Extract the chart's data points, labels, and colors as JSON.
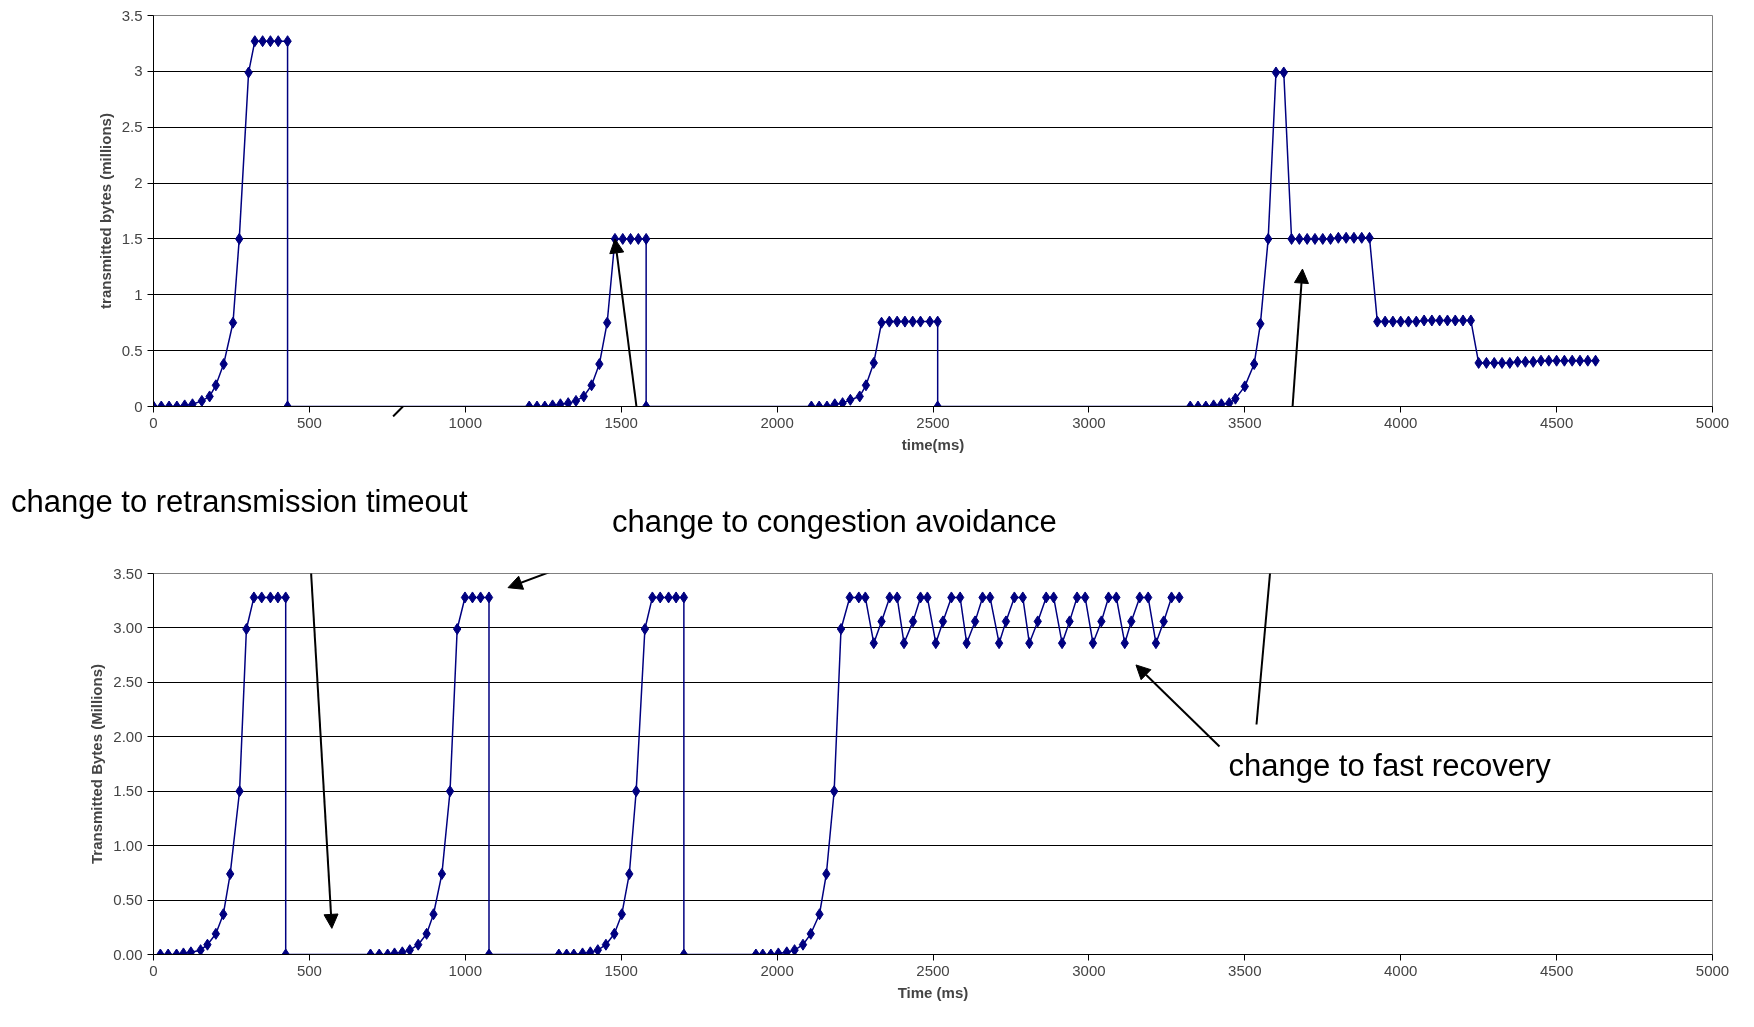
{
  "chart_data": [
    {
      "type": "line",
      "xlabel": "time(ms)",
      "ylabel": "transmitted bytes (millions)",
      "xlim": [
        0,
        5000
      ],
      "ylim": [
        0,
        3.5
      ],
      "xticks": [
        0,
        500,
        1000,
        1500,
        2000,
        2500,
        3000,
        3500,
        4000,
        4500,
        5000
      ],
      "yticks": [
        0,
        0.5,
        1,
        1.5,
        2,
        2.5,
        3,
        3.5
      ],
      "grid": "y",
      "marker": "diamond",
      "line_style": "solid",
      "annotations": [
        {
          "text": "change to retransmission timeout",
          "x": 800,
          "y": 0
        },
        {
          "text": "change to congestion avoidance",
          "x": 1480,
          "y": 1.5
        }
      ],
      "series": [
        {
          "color": "#000080",
          "x": [
            0,
            25,
            50,
            75,
            100,
            125,
            155,
            180,
            200,
            225,
            255,
            275,
            305,
            325,
            350,
            375,
            400,
            430,
            430,
            1205,
            1230,
            1255,
            1280,
            1305,
            1330,
            1355,
            1380,
            1405,
            1430,
            1455,
            1480,
            1505,
            1530,
            1555,
            1580,
            1580,
            2110,
            2135,
            2160,
            2185,
            2210,
            2235,
            2265,
            2285,
            2310,
            2335,
            2360,
            2385,
            2410,
            2435,
            2460,
            2490,
            2515,
            2515,
            3325,
            3350,
            3375,
            3400,
            3425,
            3450,
            3470,
            3500,
            3530,
            3550,
            3575,
            3600,
            3625,
            3650,
            3675,
            3700,
            3725,
            3750,
            3775,
            3800,
            3825,
            3850,
            3875,
            3900,
            3925,
            3950,
            3975,
            4000,
            4025,
            4050,
            4075,
            4100,
            4125,
            4150,
            4175,
            4200,
            4225,
            4250,
            4275,
            4300,
            4325,
            4350,
            4375,
            4400,
            4425,
            4450,
            4475,
            4500,
            4525,
            4550,
            4575,
            4600,
            4625
          ],
          "values": [
            0,
            0,
            0,
            0,
            0.01,
            0.02,
            0.05,
            0.09,
            0.19,
            0.38,
            0.75,
            1.5,
            2.99,
            3.27,
            3.27,
            3.27,
            3.27,
            3.27,
            0,
            0,
            0,
            0,
            0.01,
            0.02,
            0.03,
            0.05,
            0.09,
            0.19,
            0.38,
            0.75,
            1.5,
            1.5,
            1.5,
            1.5,
            1.5,
            0,
            0,
            0,
            0,
            0.02,
            0.03,
            0.06,
            0.09,
            0.19,
            0.39,
            0.75,
            0.76,
            0.76,
            0.76,
            0.76,
            0.76,
            0.76,
            0.76,
            0,
            0,
            0,
            0,
            0.01,
            0.02,
            0.03,
            0.07,
            0.18,
            0.38,
            0.74,
            1.5,
            2.99,
            2.99,
            1.5,
            1.5,
            1.5,
            1.5,
            1.5,
            1.5,
            1.51,
            1.51,
            1.51,
            1.51,
            1.51,
            0.76,
            0.76,
            0.76,
            0.76,
            0.76,
            0.76,
            0.77,
            0.77,
            0.77,
            0.77,
            0.77,
            0.77,
            0.77,
            0.39,
            0.39,
            0.39,
            0.39,
            0.39,
            0.4,
            0.4,
            0.4,
            0.41,
            0.41,
            0.41,
            0.41,
            0.41,
            0.41,
            0.41,
            0.41
          ]
        }
      ]
    },
    {
      "type": "line",
      "xlabel": "Time (ms)",
      "ylabel": "Transmitted Bytes (Millions)",
      "xlim": [
        0,
        5000
      ],
      "ylim": [
        0,
        3.5
      ],
      "xticks": [
        0,
        500,
        1000,
        1500,
        2000,
        2500,
        3000,
        3500,
        4000,
        4500,
        5000
      ],
      "yticks": [
        {
          "value": 0,
          "label": "0.00"
        },
        {
          "value": 0.5,
          "label": "0.50"
        },
        {
          "value": 1,
          "label": "1.00"
        },
        {
          "value": 1.5,
          "label": "1.50"
        },
        {
          "value": 2,
          "label": "2.00"
        },
        {
          "value": 2.5,
          "label": "2.50"
        },
        {
          "value": 3,
          "label": "3.00"
        },
        {
          "value": 3.5,
          "label": "3.50"
        }
      ],
      "grid": "y",
      "marker": "diamond",
      "line_style": "solid",
      "annotations": [
        "change to fast recovery"
      ],
      "series": [
        {
          "color": "#000080",
          "x": [
            22,
            47,
            74,
            96,
            120,
            151,
            173,
            200,
            224,
            246,
            276,
            298,
            322,
            347,
            375,
            399,
            424,
            424,
            696,
            724,
            751,
            773,
            798,
            822,
            849,
            876,
            898,
            925,
            951,
            974,
            999,
            1023,
            1049,
            1076,
            1076,
            1300,
            1325,
            1348,
            1376,
            1401,
            1425,
            1451,
            1478,
            1502,
            1526,
            1548,
            1576,
            1600,
            1625,
            1652,
            1676,
            1701,
            1701,
            1932,
            1954,
            1980,
            2004,
            2031,
            2056,
            2083,
            2108,
            2136,
            2158,
            2183,
            2205,
            2233,
            2262,
            2283,
            2310,
            2335,
            2361,
            2385,
            2407,
            2436,
            2460,
            2482,
            2509,
            2532,
            2559,
            2587,
            2608,
            2635,
            2659,
            2683,
            2712,
            2734,
            2761,
            2788,
            2809,
            2836,
            2863,
            2887,
            2914,
            2938,
            2962,
            2988,
            3013,
            3040,
            3063,
            3088,
            3115,
            3136,
            3163,
            3190,
            3215,
            3240,
            3265,
            3290
          ],
          "values": [
            0,
            0,
            0,
            0.01,
            0.02,
            0.04,
            0.09,
            0.19,
            0.37,
            0.74,
            1.5,
            2.99,
            3.28,
            3.28,
            3.28,
            3.28,
            3.28,
            0,
            0,
            0,
            0,
            0.01,
            0.02,
            0.04,
            0.09,
            0.19,
            0.37,
            0.74,
            1.5,
            2.99,
            3.28,
            3.28,
            3.28,
            3.28,
            0,
            0,
            0,
            0,
            0.01,
            0.02,
            0.04,
            0.09,
            0.19,
            0.37,
            0.74,
            1.5,
            2.99,
            3.28,
            3.28,
            3.28,
            3.28,
            3.28,
            0,
            0,
            0,
            0,
            0.01,
            0.02,
            0.04,
            0.09,
            0.19,
            0.37,
            0.74,
            1.5,
            2.99,
            3.28,
            3.28,
            3.28,
            2.86,
            3.06,
            3.28,
            3.28,
            2.86,
            3.06,
            3.28,
            3.28,
            2.86,
            3.06,
            3.28,
            3.28,
            2.86,
            3.06,
            3.28,
            3.28,
            2.86,
            3.06,
            3.28,
            3.28,
            2.86,
            3.06,
            3.28,
            3.28,
            2.86,
            3.06,
            3.28,
            3.28,
            2.86,
            3.06,
            3.28,
            3.28,
            2.86,
            3.06,
            3.28,
            3.28,
            2.86,
            3.06,
            3.28,
            3.28
          ]
        }
      ]
    }
  ]
}
